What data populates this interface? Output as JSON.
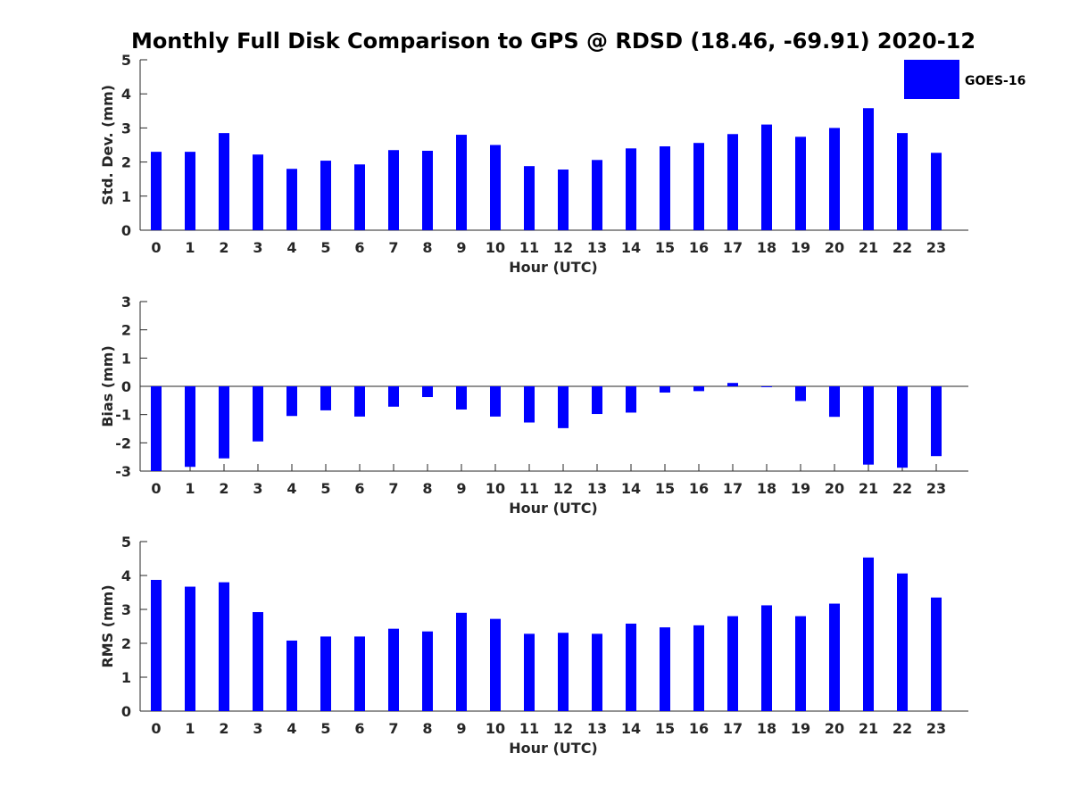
{
  "chart_data": [
    {
      "type": "bar",
      "title": "Monthly Full Disk Comparison to GPS @ RDSD (18.46, -69.91) 2020-12",
      "xlabel": "Hour (UTC)",
      "ylabel": "Std. Dev. (mm)",
      "categories": [
        "0",
        "1",
        "2",
        "3",
        "4",
        "5",
        "6",
        "7",
        "8",
        "9",
        "10",
        "11",
        "12",
        "13",
        "14",
        "15",
        "16",
        "17",
        "18",
        "19",
        "20",
        "21",
        "22",
        "23"
      ],
      "series": [
        {
          "name": "GOES-16",
          "values": [
            2.3,
            2.3,
            2.85,
            2.22,
            1.8,
            2.04,
            1.93,
            2.35,
            2.33,
            2.8,
            2.5,
            1.88,
            1.78,
            2.06,
            2.4,
            2.46,
            2.56,
            2.82,
            3.1,
            2.74,
            3.0,
            3.58,
            2.85,
            2.27
          ]
        }
      ],
      "ylim": [
        0,
        5
      ],
      "yticks": [
        "0",
        "1",
        "2",
        "3",
        "4",
        "5"
      ],
      "legend": {
        "label": "GOES-16",
        "color": "#0000ff",
        "placement": "top-right"
      }
    },
    {
      "type": "bar",
      "xlabel": "Hour (UTC)",
      "ylabel": "Bias (mm)",
      "categories": [
        "0",
        "1",
        "2",
        "3",
        "4",
        "5",
        "6",
        "7",
        "8",
        "9",
        "10",
        "11",
        "12",
        "13",
        "14",
        "15",
        "16",
        "17",
        "18",
        "19",
        "20",
        "21",
        "22",
        "23"
      ],
      "series": [
        {
          "name": "GOES-16",
          "values": [
            -3.0,
            -2.85,
            -2.55,
            -1.95,
            -1.05,
            -0.85,
            -1.07,
            -0.72,
            -0.38,
            -0.82,
            -1.07,
            -1.28,
            -1.48,
            -0.98,
            -0.93,
            -0.22,
            -0.17,
            0.12,
            -0.03,
            -0.52,
            -1.08,
            -2.77,
            -2.88,
            -2.47
          ]
        }
      ],
      "ylim": [
        -3,
        3
      ],
      "yticks": [
        "-3",
        "-2",
        "-1",
        "0",
        "1",
        "2",
        "3"
      ]
    },
    {
      "type": "bar",
      "xlabel": "Hour (UTC)",
      "ylabel": "RMS (mm)",
      "categories": [
        "0",
        "1",
        "2",
        "3",
        "4",
        "5",
        "6",
        "7",
        "8",
        "9",
        "10",
        "11",
        "12",
        "13",
        "14",
        "15",
        "16",
        "17",
        "18",
        "19",
        "20",
        "21",
        "22",
        "23"
      ],
      "series": [
        {
          "name": "GOES-16",
          "values": [
            3.87,
            3.67,
            3.8,
            2.92,
            2.08,
            2.2,
            2.2,
            2.43,
            2.35,
            2.9,
            2.72,
            2.28,
            2.31,
            2.28,
            2.58,
            2.47,
            2.53,
            2.8,
            3.12,
            2.8,
            3.17,
            4.53,
            4.06,
            3.35
          ]
        }
      ],
      "ylim": [
        0,
        5
      ],
      "yticks": [
        "0",
        "1",
        "2",
        "3",
        "4",
        "5"
      ]
    }
  ],
  "colors": {
    "bar": "#0000ff",
    "axis": "#262626"
  }
}
